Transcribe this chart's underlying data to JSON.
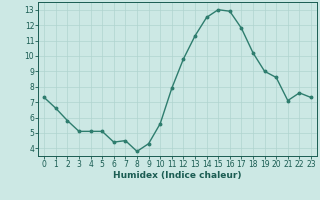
{
  "x": [
    0,
    1,
    2,
    3,
    4,
    5,
    6,
    7,
    8,
    9,
    10,
    11,
    12,
    13,
    14,
    15,
    16,
    17,
    18,
    19,
    20,
    21,
    22,
    23
  ],
  "y": [
    7.3,
    6.6,
    5.8,
    5.1,
    5.1,
    5.1,
    4.4,
    4.5,
    3.8,
    4.3,
    5.6,
    7.9,
    9.8,
    11.3,
    12.5,
    13.0,
    12.9,
    11.8,
    10.2,
    9.0,
    8.6,
    7.1,
    7.6,
    7.3
  ],
  "line_color": "#2e7d6e",
  "marker": "o",
  "markersize": 1.8,
  "linewidth": 1.0,
  "bg_color": "#cce8e4",
  "grid_color": "#b0d4cf",
  "xlabel": "Humidex (Indice chaleur)",
  "xlabel_fontsize": 6.5,
  "xlabel_color": "#1a5c52",
  "tick_color": "#1a5c52",
  "tick_fontsize": 5.5,
  "ylim": [
    3.5,
    13.5
  ],
  "yticks": [
    4,
    5,
    6,
    7,
    8,
    9,
    10,
    11,
    12,
    13
  ],
  "xlim": [
    -0.5,
    23.5
  ],
  "xticks": [
    0,
    1,
    2,
    3,
    4,
    5,
    6,
    7,
    8,
    9,
    10,
    11,
    12,
    13,
    14,
    15,
    16,
    17,
    18,
    19,
    20,
    21,
    22,
    23
  ]
}
